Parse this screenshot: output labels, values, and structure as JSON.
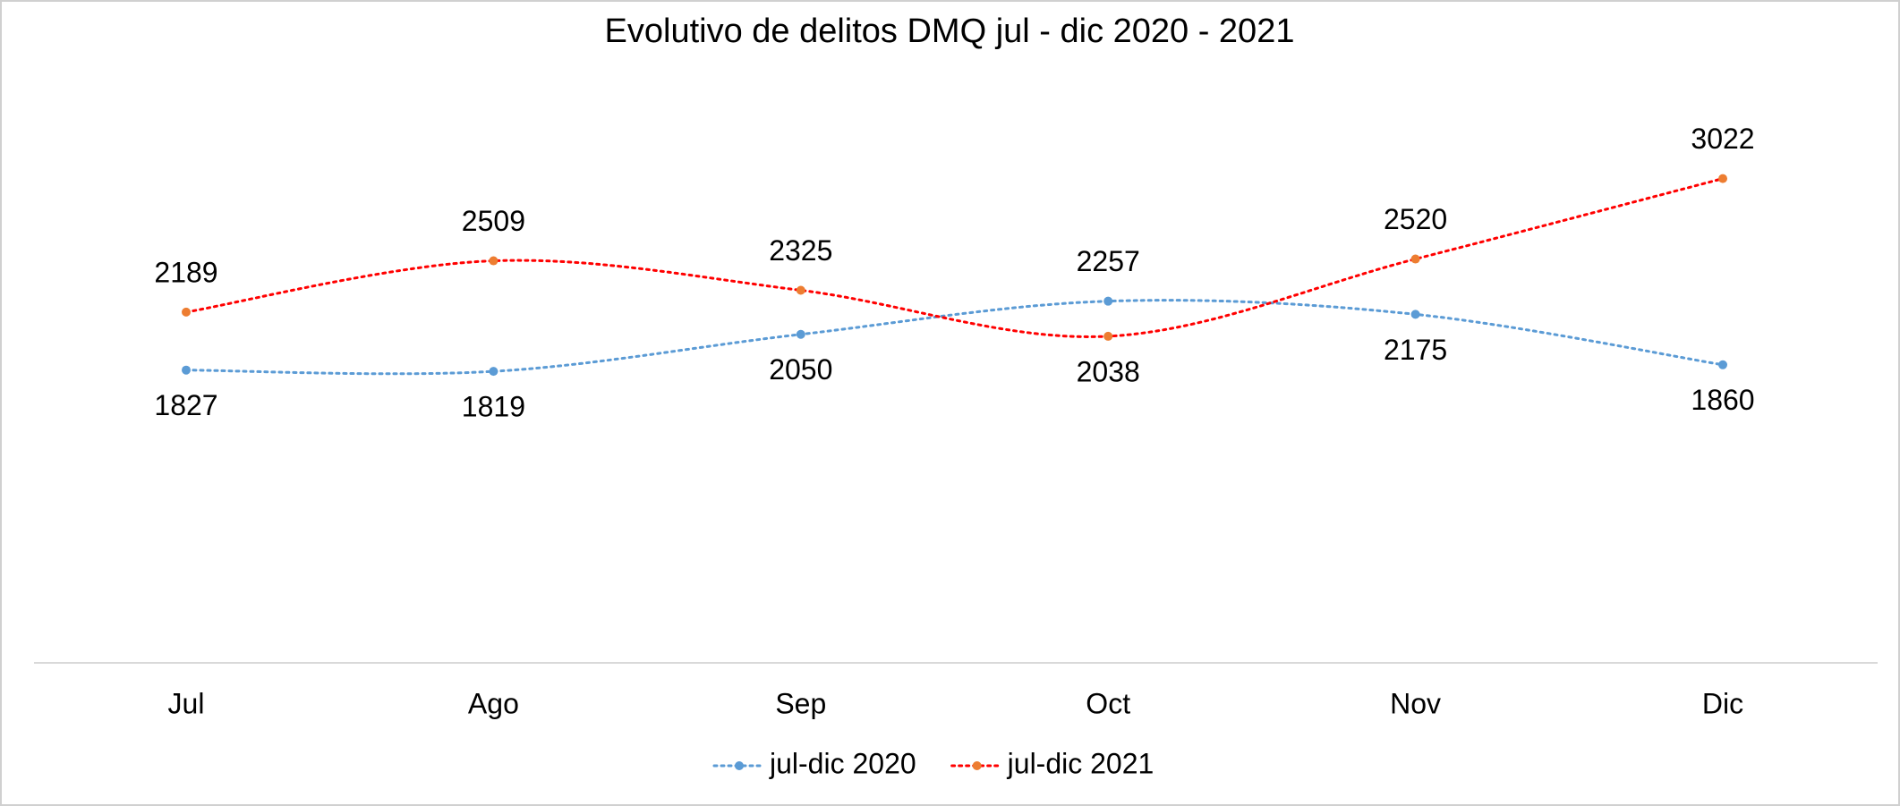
{
  "chart_data": {
    "type": "line",
    "title": "Evolutivo de delitos DMQ jul - dic 2020 - 2021",
    "categories": [
      "Jul",
      "Ago",
      "Sep",
      "Oct",
      "Nov",
      "Dic"
    ],
    "series": [
      {
        "name": "jul-dic 2020",
        "color": "#5b9bd5",
        "marker_color": "#5b9bd5",
        "values": [
          1827,
          1819,
          2050,
          2257,
          2175,
          1860
        ]
      },
      {
        "name": "jul-dic 2021",
        "color": "#ff0000",
        "marker_color": "#ed7d31",
        "values": [
          2189,
          2509,
          2325,
          2038,
          2520,
          3022
        ]
      }
    ],
    "ylim": [
      0,
      3500
    ],
    "smooth": true,
    "line_style": "dotted",
    "legend": "bottom"
  }
}
